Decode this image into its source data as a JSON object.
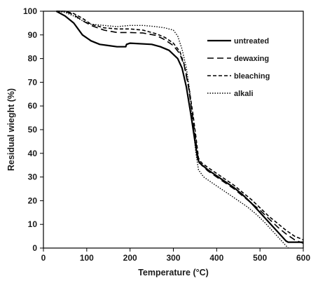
{
  "chart_data": {
    "type": "line",
    "xlabel": "Temperature (°C)",
    "ylabel": "Residual wieght (%)",
    "xlim": [
      0,
      600
    ],
    "ylim": [
      0,
      100
    ],
    "xticks": [
      0,
      100,
      200,
      300,
      400,
      500,
      600
    ],
    "yticks": [
      0,
      10,
      20,
      30,
      40,
      50,
      60,
      70,
      80,
      90,
      100
    ],
    "grid": false,
    "legend_position": "top-right",
    "series": [
      {
        "name": "untreated",
        "style": "solid",
        "stroke_width": 2.2,
        "color": "#000000",
        "points": [
          [
            30,
            100
          ],
          [
            50,
            98
          ],
          [
            70,
            95
          ],
          [
            90,
            90
          ],
          [
            110,
            87.5
          ],
          [
            130,
            86
          ],
          [
            150,
            85.5
          ],
          [
            170,
            85
          ],
          [
            190,
            85
          ],
          [
            192,
            86
          ],
          [
            200,
            86.5
          ],
          [
            250,
            86
          ],
          [
            270,
            85
          ],
          [
            290,
            83.5
          ],
          [
            310,
            80
          ],
          [
            320,
            76
          ],
          [
            330,
            68
          ],
          [
            340,
            57
          ],
          [
            350,
            45
          ],
          [
            356,
            38
          ],
          [
            360,
            36
          ],
          [
            380,
            33
          ],
          [
            400,
            30.5
          ],
          [
            420,
            28
          ],
          [
            440,
            25.5
          ],
          [
            460,
            22.5
          ],
          [
            480,
            19
          ],
          [
            500,
            15
          ],
          [
            520,
            11
          ],
          [
            540,
            7
          ],
          [
            560,
            3
          ],
          [
            565,
            2.5
          ],
          [
            600,
            2.5
          ]
        ]
      },
      {
        "name": "dewaxing",
        "style": "longdash",
        "stroke_width": 1.6,
        "color": "#000000",
        "points": [
          [
            30,
            100
          ],
          [
            50,
            100
          ],
          [
            70,
            98.5
          ],
          [
            90,
            96
          ],
          [
            110,
            94
          ],
          [
            140,
            92
          ],
          [
            170,
            91
          ],
          [
            200,
            91
          ],
          [
            230,
            90.8
          ],
          [
            260,
            89.8
          ],
          [
            280,
            88
          ],
          [
            300,
            85.5
          ],
          [
            315,
            82
          ],
          [
            325,
            77
          ],
          [
            335,
            68
          ],
          [
            345,
            55
          ],
          [
            352,
            45
          ],
          [
            358,
            37
          ],
          [
            365,
            35
          ],
          [
            380,
            32.5
          ],
          [
            400,
            30
          ],
          [
            420,
            27.5
          ],
          [
            440,
            25
          ],
          [
            460,
            22
          ],
          [
            480,
            19
          ],
          [
            500,
            16
          ],
          [
            520,
            12.5
          ],
          [
            540,
            9
          ],
          [
            560,
            6
          ],
          [
            580,
            3.5
          ],
          [
            600,
            2
          ]
        ]
      },
      {
        "name": "bleaching",
        "style": "shortdash",
        "stroke_width": 1.6,
        "color": "#000000",
        "points": [
          [
            30,
            100
          ],
          [
            50,
            100
          ],
          [
            70,
            99
          ],
          [
            90,
            97
          ],
          [
            110,
            94.5
          ],
          [
            140,
            93
          ],
          [
            170,
            92.5
          ],
          [
            200,
            92.5
          ],
          [
            230,
            92
          ],
          [
            260,
            90.5
          ],
          [
            280,
            89
          ],
          [
            300,
            86.5
          ],
          [
            315,
            83
          ],
          [
            325,
            77.5
          ],
          [
            335,
            69
          ],
          [
            345,
            57
          ],
          [
            352,
            47
          ],
          [
            358,
            38
          ],
          [
            365,
            36
          ],
          [
            380,
            34
          ],
          [
            400,
            31.5
          ],
          [
            420,
            29
          ],
          [
            440,
            26.5
          ],
          [
            460,
            23.5
          ],
          [
            480,
            20.5
          ],
          [
            500,
            17
          ],
          [
            520,
            13.5
          ],
          [
            540,
            10.5
          ],
          [
            560,
            7.5
          ],
          [
            580,
            5
          ],
          [
            600,
            3.5
          ]
        ]
      },
      {
        "name": "alkali",
        "style": "dotted",
        "stroke_width": 1.4,
        "color": "#000000",
        "points": [
          [
            30,
            100
          ],
          [
            50,
            99.5
          ],
          [
            70,
            98
          ],
          [
            90,
            96
          ],
          [
            110,
            94.5
          ],
          [
            140,
            94
          ],
          [
            170,
            93.5
          ],
          [
            200,
            94
          ],
          [
            230,
            94
          ],
          [
            260,
            93.5
          ],
          [
            280,
            93
          ],
          [
            300,
            92
          ],
          [
            310,
            89.5
          ],
          [
            320,
            84
          ],
          [
            330,
            76
          ],
          [
            338,
            66
          ],
          [
            345,
            52
          ],
          [
            352,
            40
          ],
          [
            358,
            33
          ],
          [
            370,
            30
          ],
          [
            390,
            27.5
          ],
          [
            410,
            25
          ],
          [
            430,
            22.5
          ],
          [
            450,
            20
          ],
          [
            470,
            17.5
          ],
          [
            490,
            14.5
          ],
          [
            510,
            11
          ],
          [
            530,
            7
          ],
          [
            550,
            3
          ],
          [
            565,
            0
          ]
        ]
      }
    ]
  }
}
